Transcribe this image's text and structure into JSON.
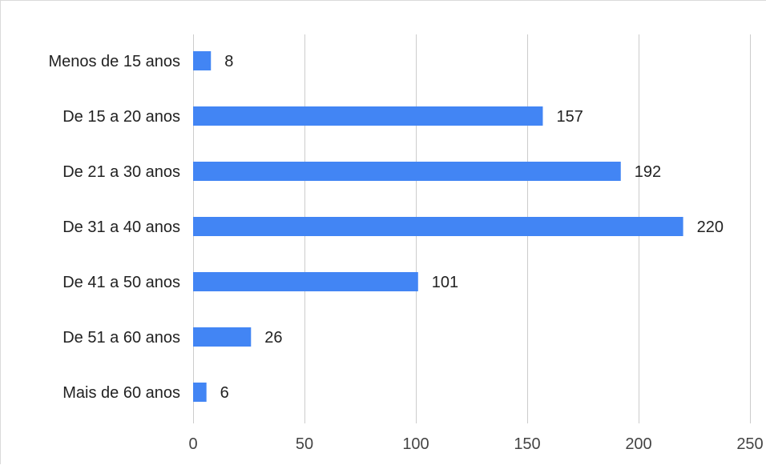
{
  "chart_data": {
    "type": "bar",
    "orientation": "horizontal",
    "categories": [
      "Menos de 15 anos",
      "De 15 a 20 anos",
      "De 21 a 30 anos",
      "De 31 a 40 anos",
      "De 41 a 50 anos",
      "De 51 a 60 anos",
      "Mais de 60 anos"
    ],
    "values": [
      8,
      157,
      192,
      220,
      101,
      26,
      6
    ],
    "xlim": [
      0,
      250
    ],
    "xticks": [
      0,
      50,
      100,
      150,
      200,
      250
    ],
    "grid": "vertical",
    "data_labels": true,
    "title": "",
    "xlabel": "",
    "ylabel": "",
    "colors": {
      "bar": "#4285f4"
    }
  }
}
